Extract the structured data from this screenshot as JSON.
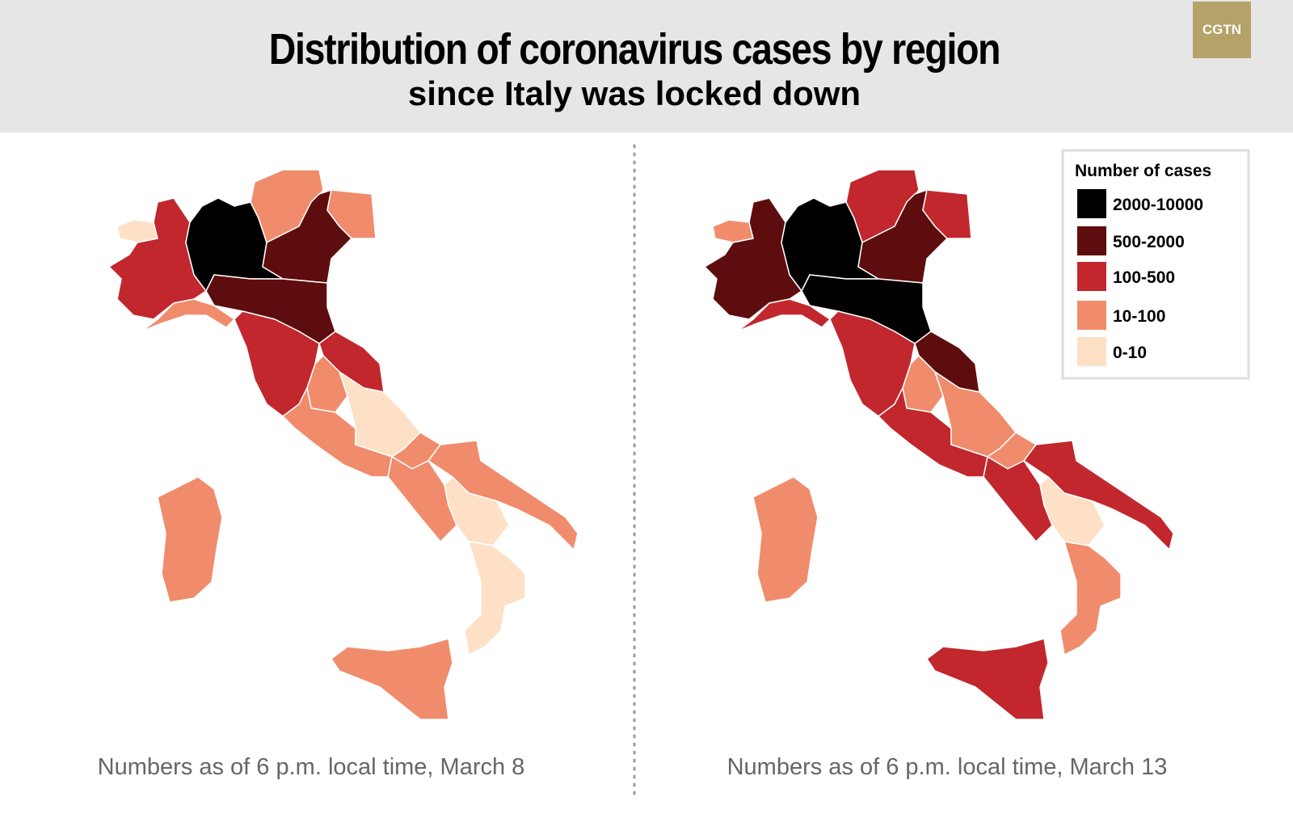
{
  "header": {
    "title": "Distribution of coronavirus cases by region",
    "subtitle": "since Italy was locked down",
    "logo": "CGTN"
  },
  "maps": [
    {
      "caption": "Numbers as of 6 p.m. local time, March 8"
    },
    {
      "caption": "Numbers as of 6 p.m. local time, March 13"
    }
  ],
  "legend": {
    "title": "Number of cases",
    "items": [
      {
        "label": "2000-10000",
        "color": "#000000"
      },
      {
        "label": "500-2000",
        "color": "#5e0d0e"
      },
      {
        "label": "100-500",
        "color": "#c1272d"
      },
      {
        "label": "10-100",
        "color": "#f08c6c"
      },
      {
        "label": "0-10",
        "color": "#fde0c5"
      }
    ]
  }
}
